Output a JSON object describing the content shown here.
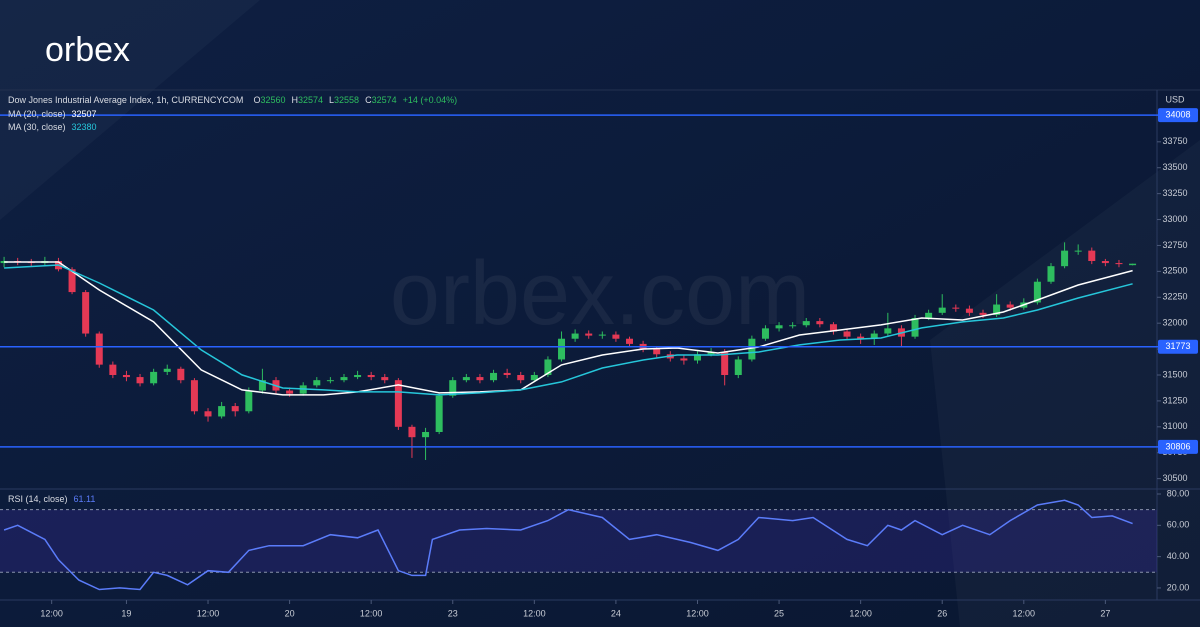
{
  "logo": "orbex",
  "watermark": "orbex.com",
  "chart_data": [
    {
      "type": "candlestick",
      "title": "Dow Jones Industrial Average Index, 1h, CURRENCYCOM",
      "ohlc": [
        {
          "label": "O",
          "value": 32560
        },
        {
          "label": "H",
          "value": 32574
        },
        {
          "label": "L",
          "value": 32558
        },
        {
          "label": "C",
          "value": 32574
        }
      ],
      "change": "+14 (+0.04%)",
      "currency": "USD",
      "up_color": "#2ebd5f",
      "down_color": "#e53955",
      "xlim": [
        -0.6,
        169.3
      ],
      "ylim": [
        30400,
        34250
      ],
      "yticks": [
        30500,
        30750,
        31000,
        31250,
        31500,
        31750,
        32000,
        32250,
        32500,
        32750,
        33000,
        33250,
        33500,
        33750
      ],
      "levels": [
        {
          "value": 34008
        },
        {
          "value": 31773
        },
        {
          "value": 30806
        }
      ],
      "level_color": "#2962ff",
      "x": [
        0,
        2,
        4,
        6,
        8,
        10,
        12,
        14,
        16,
        18,
        20,
        22,
        24,
        26,
        28,
        30,
        32,
        34,
        36,
        38,
        40,
        42,
        44,
        46,
        48,
        50,
        52,
        54,
        56,
        58,
        60,
        62,
        64,
        66,
        68,
        70,
        72,
        74,
        76,
        78,
        80,
        82,
        84,
        86,
        88,
        90,
        92,
        94,
        96,
        98,
        100,
        102,
        104,
        106,
        108,
        110,
        112,
        114,
        116,
        118,
        120,
        122,
        124,
        126,
        128,
        130,
        132,
        134,
        136,
        138,
        140,
        142,
        144,
        146,
        148,
        150,
        152,
        154,
        156,
        158,
        160,
        162,
        164,
        166
      ],
      "open": [
        32580,
        32600,
        32590,
        32580,
        32600,
        32520,
        32300,
        31900,
        31600,
        31500,
        31480,
        31420,
        31530,
        31560,
        31450,
        31150,
        31100,
        31200,
        31150,
        31350,
        31450,
        31350,
        31320,
        31400,
        31450,
        31450,
        31480,
        31500,
        31480,
        31450,
        31000,
        30900,
        30950,
        31300,
        31450,
        31480,
        31450,
        31520,
        31500,
        31450,
        31500,
        31650,
        31850,
        31900,
        31880,
        31890,
        31850,
        31800,
        31750,
        31700,
        31660,
        31640,
        31700,
        31720,
        31500,
        31650,
        31850,
        31950,
        31980,
        31980,
        32020,
        31990,
        31920,
        31870,
        31850,
        31900,
        31950,
        31870,
        32050,
        32100,
        32150,
        32140,
        32100,
        32080,
        32180,
        32150,
        32200,
        32400,
        32550,
        32700,
        32700,
        32600,
        32580,
        32560
      ],
      "high": [
        32640,
        32630,
        32620,
        32640,
        32630,
        32540,
        32320,
        31920,
        31630,
        31540,
        31510,
        31560,
        31600,
        31580,
        31470,
        31180,
        31240,
        31230,
        31380,
        31560,
        31480,
        31380,
        31430,
        31480,
        31480,
        31510,
        31540,
        31530,
        31510,
        31470,
        31020,
        30990,
        31320,
        31480,
        31510,
        31510,
        31550,
        31560,
        31530,
        31530,
        31680,
        31920,
        31940,
        31930,
        31920,
        31920,
        31870,
        31830,
        31780,
        31730,
        31690,
        31730,
        31760,
        31750,
        31680,
        31880,
        31980,
        32010,
        32010,
        32050,
        32050,
        32010,
        31940,
        31900,
        31930,
        32100,
        31980,
        32080,
        32130,
        32280,
        32180,
        32170,
        32130,
        32280,
        32210,
        32240,
        32430,
        32580,
        32780,
        32760,
        32730,
        32620,
        32610,
        32574
      ],
      "low": [
        32540,
        32560,
        32550,
        32560,
        32500,
        32280,
        31870,
        31570,
        31470,
        31440,
        31390,
        31400,
        31500,
        31420,
        31120,
        31050,
        31080,
        31100,
        31130,
        31320,
        31320,
        31290,
        31300,
        31380,
        31420,
        31430,
        31460,
        31450,
        31420,
        30970,
        30700,
        30680,
        30930,
        31280,
        31430,
        31420,
        31430,
        31470,
        31420,
        31430,
        31480,
        31630,
        31820,
        31850,
        31850,
        31820,
        31770,
        31720,
        31670,
        31630,
        31600,
        31610,
        31680,
        31400,
        31470,
        31630,
        31830,
        31920,
        31950,
        31960,
        31960,
        31890,
        31840,
        31800,
        31790,
        31880,
        31780,
        31850,
        32030,
        32080,
        32110,
        32070,
        32050,
        32060,
        32120,
        32130,
        32180,
        32380,
        32530,
        32660,
        32570,
        32550,
        32540,
        32558
      ],
      "close": [
        32600,
        32590,
        32580,
        32600,
        32520,
        32300,
        31900,
        31600,
        31500,
        31480,
        31420,
        31530,
        31560,
        31450,
        31150,
        31100,
        31200,
        31150,
        31350,
        31450,
        31350,
        31320,
        31400,
        31450,
        31450,
        31480,
        31500,
        31480,
        31450,
        31000,
        30900,
        30950,
        31300,
        31450,
        31480,
        31450,
        31520,
        31500,
        31450,
        31500,
        31650,
        31850,
        31900,
        31880,
        31890,
        31850,
        31800,
        31750,
        31700,
        31660,
        31640,
        31700,
        31720,
        31500,
        31650,
        31850,
        31950,
        31980,
        31980,
        32020,
        31990,
        31920,
        31870,
        31850,
        31900,
        31950,
        31870,
        32050,
        32100,
        32150,
        32140,
        32100,
        32080,
        32180,
        32150,
        32200,
        32400,
        32550,
        32700,
        32700,
        32600,
        32580,
        32570,
        32574
      ],
      "series": [
        {
          "name": "MA (20, close)",
          "color": "#ffffff",
          "last": 32507,
          "x": [
            0,
            8,
            14,
            22,
            29,
            35,
            41,
            47,
            52,
            58,
            64,
            70,
            76,
            82,
            88,
            94,
            99,
            105,
            111,
            117,
            123,
            129,
            135,
            141,
            147,
            152,
            158,
            166
          ],
          "values": [
            32590,
            32590,
            32320,
            32012,
            31549,
            31356,
            31308,
            31308,
            31337,
            31404,
            31327,
            31337,
            31356,
            31597,
            31693,
            31751,
            31761,
            31712,
            31770,
            31886,
            31934,
            31983,
            32050,
            32031,
            32108,
            32224,
            32368,
            32507
          ]
        },
        {
          "name": "MA (30, close)",
          "color": "#26c6da",
          "last": 32380,
          "x": [
            0,
            8,
            14,
            22,
            29,
            35,
            41,
            47,
            52,
            58,
            64,
            70,
            76,
            82,
            88,
            94,
            99,
            105,
            111,
            117,
            123,
            129,
            135,
            141,
            147,
            152,
            158,
            166
          ],
          "values": [
            32532,
            32561,
            32388,
            32127,
            31742,
            31501,
            31375,
            31356,
            31337,
            31337,
            31308,
            31327,
            31356,
            31433,
            31568,
            31645,
            31693,
            31693,
            31722,
            31790,
            31838,
            31857,
            31954,
            32012,
            32050,
            32127,
            32243,
            32380
          ]
        }
      ]
    },
    {
      "type": "line",
      "xlim": [
        -0.6,
        169.3
      ],
      "ylim": [
        12.3,
        83.2
      ],
      "yticks": [
        {
          "value": 20,
          "label": "20.00"
        },
        {
          "value": 40,
          "label": "40.00"
        },
        {
          "value": 60,
          "label": "60.00"
        },
        {
          "value": 80,
          "label": "80.00"
        }
      ],
      "xticks": [
        {
          "value": 7,
          "label": "12:00"
        },
        {
          "value": 18,
          "label": "19"
        },
        {
          "value": 30,
          "label": "12:00"
        },
        {
          "value": 42,
          "label": "20"
        },
        {
          "value": 54,
          "label": "12:00"
        },
        {
          "value": 66,
          "label": "23"
        },
        {
          "value": 78,
          "label": "12:00"
        },
        {
          "value": 90,
          "label": "24"
        },
        {
          "value": 102,
          "label": "12:00"
        },
        {
          "value": 114,
          "label": "25"
        },
        {
          "value": 126,
          "label": "12:00"
        },
        {
          "value": 138,
          "label": "26"
        },
        {
          "value": 150,
          "label": "12:00"
        },
        {
          "value": 162,
          "label": "27"
        }
      ],
      "band": [
        30,
        70
      ],
      "series": [
        {
          "name": "RSI (14, close)",
          "color": "#5b7cfa",
          "last": 61.11,
          "x": [
            0,
            2,
            6,
            8,
            11,
            14,
            17,
            20,
            22,
            24,
            27,
            30,
            33,
            36,
            39,
            44,
            48,
            52,
            55,
            58,
            60,
            62,
            63,
            67,
            71,
            76,
            80,
            83,
            88,
            92,
            96,
            101,
            105,
            108,
            111,
            116,
            119,
            124,
            127,
            130,
            132,
            134,
            138,
            141,
            145,
            148,
            152,
            156,
            158,
            160,
            163,
            166
          ],
          "values": [
            57,
            60,
            51,
            38,
            25,
            19,
            20,
            19,
            30,
            28,
            22,
            31,
            30,
            44,
            47,
            47,
            54,
            52,
            57,
            31,
            28,
            28,
            51,
            57,
            58,
            57,
            63,
            70,
            65,
            51,
            54,
            49,
            44,
            51,
            65,
            63,
            65,
            51,
            47,
            60,
            57,
            63,
            54,
            60,
            54,
            63,
            73,
            76,
            73,
            65,
            66,
            61.11
          ]
        }
      ]
    }
  ]
}
